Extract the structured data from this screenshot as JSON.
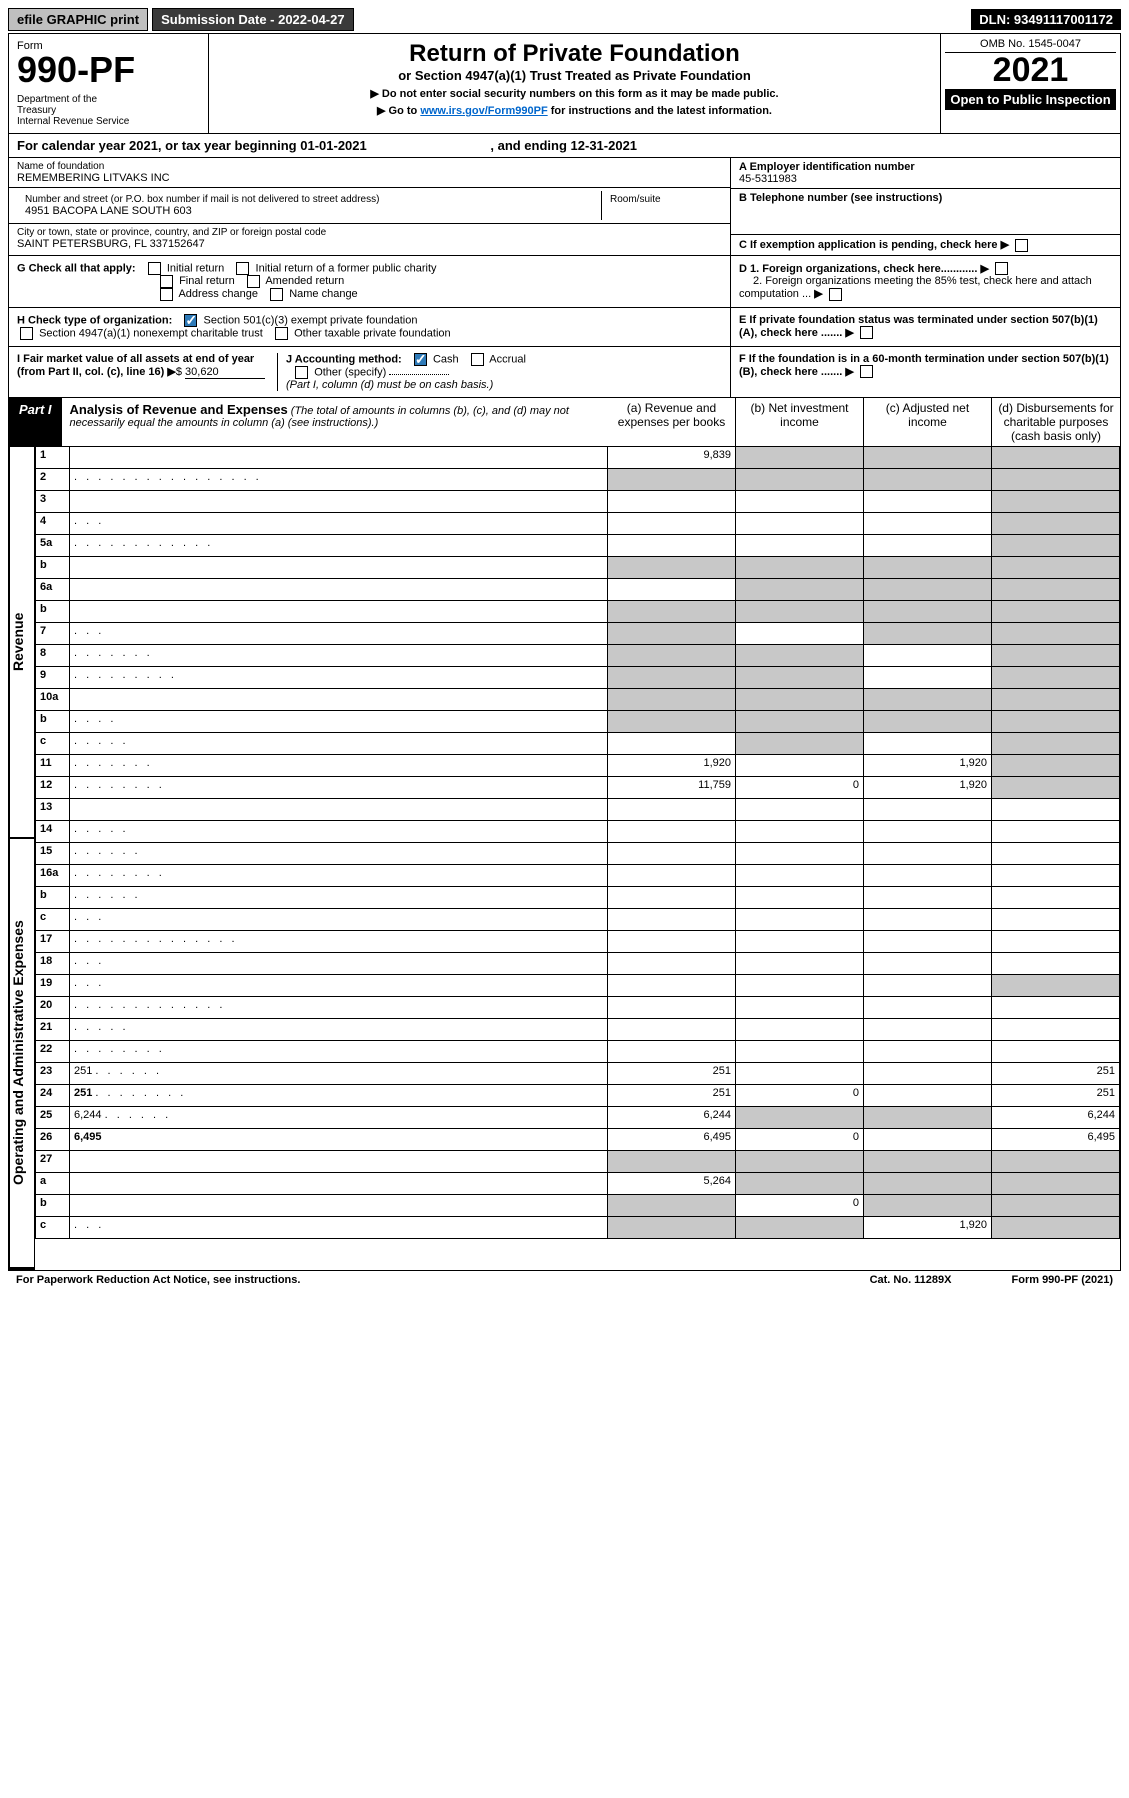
{
  "topbar": {
    "efile": "efile GRAPHIC print",
    "submission": "Submission Date - 2022-04-27",
    "dln": "DLN: 93491117001172"
  },
  "header": {
    "form_word": "Form",
    "form_num": "990-PF",
    "dept": "Department of the Treasury\nInternal Revenue Service",
    "title": "Return of Private Foundation",
    "subtitle": "or Section 4947(a)(1) Trust Treated as Private Foundation",
    "instr1": "▶ Do not enter social security numbers on this form as it may be made public.",
    "instr2_pre": "▶ Go to ",
    "instr2_link": "www.irs.gov/Form990PF",
    "instr2_post": " for instructions and the latest information.",
    "omb": "OMB No. 1545-0047",
    "year": "2021",
    "open": "Open to Public Inspection"
  },
  "cal": {
    "text_pre": "For calendar year 2021, or tax year beginning ",
    "begin": "01-01-2021",
    "mid": ", and ending ",
    "end": "12-31-2021"
  },
  "entity": {
    "name_lbl": "Name of foundation",
    "name": "REMEMBERING LITVAKS INC",
    "addr_lbl": "Number and street (or P.O. box number if mail is not delivered to street address)",
    "addr": "4951 BACOPA LANE SOUTH 603",
    "room_lbl": "Room/suite",
    "city_lbl": "City or town, state or province, country, and ZIP or foreign postal code",
    "city": "SAINT PETERSBURG, FL  337152647",
    "a_lbl": "A Employer identification number",
    "a_val": "45-5311983",
    "b_lbl": "B Telephone number (see instructions)",
    "c_lbl": "C If exemption application is pending, check here",
    "d1_lbl": "D 1. Foreign organizations, check here............",
    "d2_lbl": "2. Foreign organizations meeting the 85% test, check here and attach computation ...",
    "e_lbl": "E  If private foundation status was terminated under section 507(b)(1)(A), check here .......",
    "f_lbl": "F  If the foundation is in a 60-month termination under section 507(b)(1)(B), check here .......",
    "g_lbl": "G Check all that apply:",
    "g_opts": [
      "Initial return",
      "Initial return of a former public charity",
      "Final return",
      "Amended return",
      "Address change",
      "Name change"
    ],
    "h_lbl": "H Check type of organization:",
    "h_opts": [
      "Section 501(c)(3) exempt private foundation",
      "Section 4947(a)(1) nonexempt charitable trust",
      "Other taxable private foundation"
    ],
    "i_lbl": "I Fair market value of all assets at end of year (from Part II, col. (c), line 16)",
    "i_val": "30,620",
    "j_lbl": "J Accounting method:",
    "j_opts": [
      "Cash",
      "Accrual",
      "Other (specify)"
    ],
    "j_note": "(Part I, column (d) must be on cash basis.)"
  },
  "part1": {
    "tag": "Part I",
    "title": "Analysis of Revenue and Expenses",
    "title_note": "(The total of amounts in columns (b), (c), and (d) may not necessarily equal the amounts in column (a) (see instructions).)",
    "col_a": "(a)  Revenue and expenses per books",
    "col_b": "(b)  Net investment income",
    "col_c": "(c)  Adjusted net income",
    "col_d": "(d)  Disbursements for charitable purposes (cash basis only)"
  },
  "side_labels": {
    "revenue": "Revenue",
    "expenses": "Operating and Administrative Expenses"
  },
  "rows": [
    {
      "n": "1",
      "d": "",
      "a": "9,839",
      "b": "",
      "c": "",
      "sa": false,
      "sb": true,
      "sc": true,
      "sd": true
    },
    {
      "n": "2",
      "d": "",
      "dots": ". . . . . . . . . . . . . . . .",
      "a": "",
      "b": "",
      "c": "",
      "sa": true,
      "sb": true,
      "sc": true,
      "sd": true
    },
    {
      "n": "3",
      "d": "",
      "a": "",
      "b": "",
      "c": "",
      "sa": false,
      "sb": false,
      "sc": false,
      "sd": true
    },
    {
      "n": "4",
      "d": "",
      "dots": ". . .",
      "a": "",
      "b": "",
      "c": "",
      "sa": false,
      "sb": false,
      "sc": false,
      "sd": true
    },
    {
      "n": "5a",
      "d": "",
      "dots": ". . . . . . . . . . . .",
      "a": "",
      "b": "",
      "c": "",
      "sa": false,
      "sb": false,
      "sc": false,
      "sd": true
    },
    {
      "n": "b",
      "d": "",
      "a": "",
      "b": "",
      "c": "",
      "sa": true,
      "sb": true,
      "sc": true,
      "sd": true
    },
    {
      "n": "6a",
      "d": "",
      "a": "",
      "b": "",
      "c": "",
      "sa": false,
      "sb": true,
      "sc": true,
      "sd": true
    },
    {
      "n": "b",
      "d": "",
      "a": "",
      "b": "",
      "c": "",
      "sa": true,
      "sb": true,
      "sc": true,
      "sd": true
    },
    {
      "n": "7",
      "d": "",
      "dots": ". . .",
      "a": "",
      "b": "",
      "c": "",
      "sa": true,
      "sb": false,
      "sc": true,
      "sd": true
    },
    {
      "n": "8",
      "d": "",
      "dots": ". . . . . . .",
      "a": "",
      "b": "",
      "c": "",
      "sa": true,
      "sb": true,
      "sc": false,
      "sd": true
    },
    {
      "n": "9",
      "d": "",
      "dots": ". . . . . . . . .",
      "a": "",
      "b": "",
      "c": "",
      "sa": true,
      "sb": true,
      "sc": false,
      "sd": true
    },
    {
      "n": "10a",
      "d": "",
      "a": "",
      "b": "",
      "c": "",
      "sa": true,
      "sb": true,
      "sc": true,
      "sd": true
    },
    {
      "n": "b",
      "d": "",
      "dots": ". . . .",
      "a": "",
      "b": "",
      "c": "",
      "sa": true,
      "sb": true,
      "sc": true,
      "sd": true
    },
    {
      "n": "c",
      "d": "",
      "dots": ". . . . .",
      "a": "",
      "b": "",
      "c": "",
      "sa": false,
      "sb": true,
      "sc": false,
      "sd": true
    },
    {
      "n": "11",
      "d": "",
      "dots": ". . . . . . .",
      "a": "1,920",
      "b": "",
      "c": "1,920",
      "sa": false,
      "sb": false,
      "sc": false,
      "sd": true
    },
    {
      "n": "12",
      "d": "",
      "dots": ". . . . . . . .",
      "a": "11,759",
      "b": "0",
      "c": "1,920",
      "bold": true,
      "sa": false,
      "sb": false,
      "sc": false,
      "sd": true
    },
    {
      "n": "13",
      "d": "",
      "a": "",
      "b": "",
      "c": "",
      "sa": false,
      "sb": false,
      "sc": false,
      "sd": false
    },
    {
      "n": "14",
      "d": "",
      "dots": ". . . . .",
      "a": "",
      "b": "",
      "c": "",
      "sa": false,
      "sb": false,
      "sc": false,
      "sd": false
    },
    {
      "n": "15",
      "d": "",
      "dots": ". . . . . .",
      "a": "",
      "b": "",
      "c": "",
      "sa": false,
      "sb": false,
      "sc": false,
      "sd": false
    },
    {
      "n": "16a",
      "d": "",
      "dots": ". . . . . . . .",
      "a": "",
      "b": "",
      "c": "",
      "sa": false,
      "sb": false,
      "sc": false,
      "sd": false
    },
    {
      "n": "b",
      "d": "",
      "dots": ". . . . . .",
      "a": "",
      "b": "",
      "c": "",
      "sa": false,
      "sb": false,
      "sc": false,
      "sd": false
    },
    {
      "n": "c",
      "d": "",
      "dots": ". . .",
      "a": "",
      "b": "",
      "c": "",
      "sa": false,
      "sb": false,
      "sc": false,
      "sd": false
    },
    {
      "n": "17",
      "d": "",
      "dots": ". . . . . . . . . . . . . .",
      "a": "",
      "b": "",
      "c": "",
      "sa": false,
      "sb": false,
      "sc": false,
      "sd": false
    },
    {
      "n": "18",
      "d": "",
      "dots": ". . .",
      "a": "",
      "b": "",
      "c": "",
      "sa": false,
      "sb": false,
      "sc": false,
      "sd": false
    },
    {
      "n": "19",
      "d": "",
      "dots": ". . .",
      "a": "",
      "b": "",
      "c": "",
      "sa": false,
      "sb": false,
      "sc": false,
      "sd": true
    },
    {
      "n": "20",
      "d": "",
      "dots": ". . . . . . . . . . . . .",
      "a": "",
      "b": "",
      "c": "",
      "sa": false,
      "sb": false,
      "sc": false,
      "sd": false
    },
    {
      "n": "21",
      "d": "",
      "dots": ". . . . .",
      "a": "",
      "b": "",
      "c": "",
      "sa": false,
      "sb": false,
      "sc": false,
      "sd": false
    },
    {
      "n": "22",
      "d": "",
      "dots": ". . . . . . . .",
      "a": "",
      "b": "",
      "c": "",
      "sa": false,
      "sb": false,
      "sc": false,
      "sd": false
    },
    {
      "n": "23",
      "d": "251",
      "dots": ". . . . . .",
      "a": "251",
      "b": "",
      "c": "",
      "sa": false,
      "sb": false,
      "sc": false,
      "sd": false
    },
    {
      "n": "24",
      "d": "251",
      "dots": ". . . . . . . .",
      "a": "251",
      "b": "0",
      "c": "",
      "bold": true,
      "sa": false,
      "sb": false,
      "sc": false,
      "sd": false
    },
    {
      "n": "25",
      "d": "6,244",
      "dots": ". . . . . .",
      "a": "6,244",
      "b": "",
      "c": "",
      "sa": false,
      "sb": true,
      "sc": true,
      "sd": false
    },
    {
      "n": "26",
      "d": "6,495",
      "a": "6,495",
      "b": "0",
      "c": "",
      "bold": true,
      "sa": false,
      "sb": false,
      "sc": false,
      "sd": false
    },
    {
      "n": "27",
      "d": "",
      "a": "",
      "b": "",
      "c": "",
      "sa": true,
      "sb": true,
      "sc": true,
      "sd": true
    },
    {
      "n": "a",
      "d": "",
      "a": "5,264",
      "b": "",
      "c": "",
      "bold": true,
      "sa": false,
      "sb": true,
      "sc": true,
      "sd": true
    },
    {
      "n": "b",
      "d": "",
      "a": "",
      "b": "0",
      "c": "",
      "bold": true,
      "sa": true,
      "sb": false,
      "sc": true,
      "sd": true
    },
    {
      "n": "c",
      "d": "",
      "dots": ". . .",
      "a": "",
      "b": "",
      "c": "1,920",
      "bold": true,
      "sa": true,
      "sb": true,
      "sc": false,
      "sd": true
    }
  ],
  "footer": {
    "left": "For Paperwork Reduction Act Notice, see instructions.",
    "mid": "Cat. No. 11289X",
    "right": "Form 990-PF (2021)"
  },
  "colors": {
    "shade": "#c8c8c8",
    "black": "#000000",
    "link": "#0066cc",
    "check": "#2e7ab8"
  }
}
